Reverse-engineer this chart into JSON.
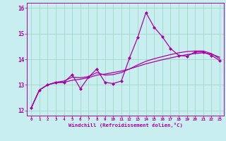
{
  "xlabel": "Windchill (Refroidissement éolien,°C)",
  "background_color": "#c8eef0",
  "grid_color": "#a0d8c8",
  "line_color": "#aa00aa",
  "xlim": [
    -0.5,
    23.5
  ],
  "ylim": [
    11.8,
    16.2
  ],
  "xticks": [
    0,
    1,
    2,
    3,
    4,
    5,
    6,
    7,
    8,
    9,
    10,
    11,
    12,
    13,
    14,
    15,
    16,
    17,
    18,
    19,
    20,
    21,
    22,
    23
  ],
  "yticks": [
    12,
    13,
    14,
    15,
    16
  ],
  "curve1_x": [
    0,
    1,
    2,
    3,
    4,
    5,
    6,
    7,
    8,
    9,
    10,
    11,
    12,
    13,
    14,
    15,
    16,
    17,
    18,
    19,
    20,
    21,
    22,
    23
  ],
  "curve1_y": [
    12.1,
    12.8,
    13.0,
    13.1,
    13.1,
    13.4,
    12.85,
    13.3,
    13.62,
    13.1,
    13.05,
    13.15,
    14.05,
    14.85,
    15.82,
    15.25,
    14.88,
    14.42,
    14.15,
    14.12,
    14.28,
    14.28,
    14.15,
    13.95
  ],
  "curve2_x": [
    0,
    1,
    2,
    3,
    4,
    5,
    6,
    7,
    8,
    9,
    10,
    11,
    12,
    13,
    14,
    15,
    16,
    17,
    18,
    19,
    20,
    21,
    22,
    23
  ],
  "curve2_y": [
    12.1,
    12.8,
    13.0,
    13.1,
    13.15,
    13.3,
    13.28,
    13.32,
    13.48,
    13.38,
    13.4,
    13.48,
    13.62,
    13.78,
    13.92,
    14.02,
    14.1,
    14.18,
    14.25,
    14.3,
    14.32,
    14.32,
    14.22,
    14.02
  ],
  "curve3_x": [
    0,
    1,
    2,
    3,
    4,
    5,
    6,
    7,
    8,
    9,
    10,
    11,
    12,
    13,
    14,
    15,
    16,
    17,
    18,
    19,
    20,
    21,
    22,
    23
  ],
  "curve3_y": [
    12.1,
    12.8,
    13.0,
    13.08,
    13.1,
    13.18,
    13.22,
    13.28,
    13.38,
    13.42,
    13.48,
    13.54,
    13.62,
    13.72,
    13.82,
    13.9,
    13.98,
    14.05,
    14.12,
    14.18,
    14.22,
    14.25,
    14.2,
    14.08
  ]
}
